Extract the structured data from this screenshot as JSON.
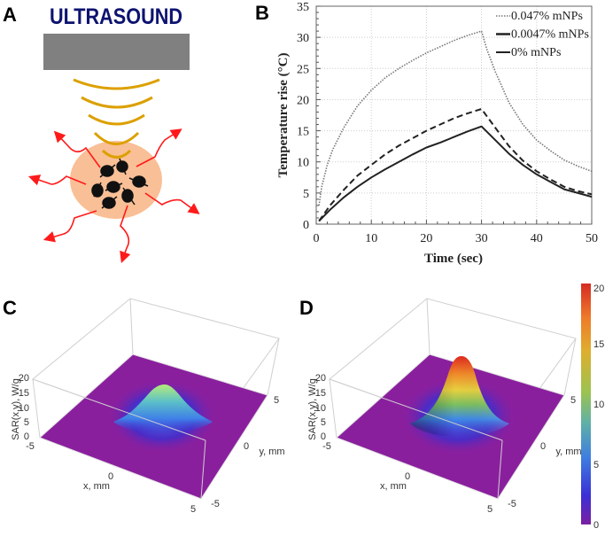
{
  "panels": {
    "a": {
      "label": "A",
      "title": "ULTRASOUND"
    },
    "b": {
      "label": "B"
    },
    "c": {
      "label": "C"
    },
    "d": {
      "label": "D"
    }
  },
  "colors": {
    "title": "#0d1370",
    "transducer": "#808080",
    "wave": "#dca000",
    "tissue": "#f9bf96",
    "particle": "#111111",
    "heat_arrow": "#ff1a1a",
    "floor": "#8a1f9e"
  },
  "chart_data": [
    {
      "panel": "B",
      "type": "line",
      "xlabel": "Time (sec)",
      "ylabel": "Temperature rise (°C)",
      "xlim": [
        0,
        50
      ],
      "ylim": [
        0,
        35
      ],
      "xticks": [
        "0",
        "10",
        "20",
        "30",
        "40",
        "50"
      ],
      "yticks": [
        "0",
        "5",
        "10",
        "15",
        "20",
        "25",
        "30",
        "35"
      ],
      "grid": true,
      "legend_position": "top-right",
      "series": [
        {
          "name": "0.047% mNPs",
          "style": "dotted",
          "color": "#777777",
          "x": [
            0.5,
            1,
            2,
            3,
            5,
            7.5,
            10,
            12.5,
            15,
            17.5,
            20,
            22.5,
            25,
            27.5,
            30,
            31,
            32.5,
            35,
            37.5,
            40,
            42.5,
            45,
            47.5,
            50
          ],
          "y": [
            3,
            6,
            9.5,
            12,
            15.5,
            19,
            21.5,
            23.5,
            25,
            26.3,
            27.5,
            28.5,
            29.5,
            30.3,
            31,
            28,
            24.5,
            19.5,
            16,
            13.5,
            11.8,
            10.3,
            9.3,
            8.5
          ]
        },
        {
          "name": "0.0047% mNPs",
          "style": "dashed",
          "color": "#222222",
          "x": [
            0.5,
            2.5,
            5,
            7.5,
            10,
            12.5,
            15,
            17.5,
            20,
            22.5,
            25,
            27.5,
            30,
            32.5,
            35,
            37.5,
            40,
            42.5,
            45,
            47.5,
            50
          ],
          "y": [
            0.5,
            3,
            5.5,
            7.8,
            9.5,
            11.2,
            12.6,
            13.8,
            15,
            16,
            17,
            17.8,
            18.5,
            15.5,
            12.5,
            10.2,
            8.5,
            7.2,
            6,
            5.3,
            4.8
          ]
        },
        {
          "name": "0% mNPs",
          "style": "solid",
          "color": "#222222",
          "x": [
            0.5,
            2.5,
            5,
            7.5,
            10,
            12.5,
            15,
            17.5,
            20,
            22.5,
            25,
            27.5,
            30,
            32.5,
            35,
            37.5,
            40,
            42.5,
            45,
            47.5,
            50
          ],
          "y": [
            0.5,
            2.3,
            4.3,
            6,
            7.5,
            8.8,
            10,
            11.2,
            12.3,
            13.1,
            14,
            14.9,
            15.7,
            13.5,
            11.3,
            9.5,
            8,
            6.8,
            5.6,
            5,
            4.4
          ]
        }
      ]
    },
    {
      "panel": "C",
      "type": "surface",
      "zlabel": "SAR(x,y), W/g",
      "xlabel": "x, mm",
      "ylabel": "y, mm",
      "xticks": [
        "-5",
        "0",
        "5"
      ],
      "yticks": [
        "-5",
        "0",
        "5"
      ],
      "zticks": [
        "0",
        "5",
        "10",
        "15",
        "20"
      ],
      "zlim": [
        0,
        20
      ],
      "peak_value": 11
    },
    {
      "panel": "D",
      "type": "surface",
      "zlabel": "SAR(x,y), W/g",
      "xlabel": "x, mm",
      "ylabel": "y, mm",
      "xticks": [
        "-5",
        "0",
        "5"
      ],
      "yticks": [
        "-5",
        "0",
        "5"
      ],
      "zticks": [
        "0",
        "5",
        "10",
        "15",
        "20"
      ],
      "zlim": [
        0,
        20
      ],
      "peak_value": 20
    }
  ],
  "colorbar": {
    "ticks": [
      "0",
      "5",
      "10",
      "15",
      "20"
    ],
    "range": [
      0,
      20
    ],
    "colormap": [
      "#7b1fa2",
      "#3b2fd6",
      "#3f7fe0",
      "#5fb0a8",
      "#9cc350",
      "#dfae2e",
      "#ee7a2a",
      "#d62a24"
    ]
  }
}
